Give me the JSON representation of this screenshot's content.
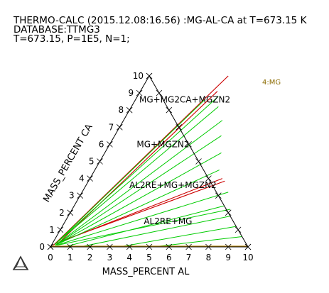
{
  "header": {
    "line1": "THERMO-CALC (2015.12.08:16.56) :MG-AL-CA at T=673.15 K",
    "line2": "DATABASE:TTMG3",
    "line3": "T=673.15, P=1E5, N=1;"
  },
  "chart_data": {
    "type": "ternary",
    "xlabel": "MASS_PERCENT AL",
    "ylabel": "MASS_PERCENT CA",
    "xlim": [
      0,
      10
    ],
    "ylim": [
      0,
      10
    ],
    "x_ticks": [
      "0",
      "1",
      "2",
      "3",
      "4",
      "5",
      "6",
      "7",
      "8",
      "9",
      "10"
    ],
    "y_ticks": [
      "0",
      "1",
      "2",
      "3",
      "4",
      "5",
      "6",
      "7",
      "8",
      "9",
      "10"
    ],
    "legend": "4:MG",
    "colors": {
      "boundary": "#cc0000",
      "tieline": "#00cc00",
      "edge_phase": "#b8860b",
      "legend_text": "#8b6b00",
      "axis": "#000000"
    },
    "region_labels": [
      {
        "text": "MG+MG2CA+MGZN2",
        "al": 2.5,
        "ca": 8.6
      },
      {
        "text": "MG+MGZN2",
        "al": 2.7,
        "ca": 6.0
      },
      {
        "text": "AL2RE+MG+MGZN2",
        "al": 4.4,
        "ca": 3.6
      },
      {
        "text": "AL2RE+MG",
        "al": 5.2,
        "ca": 1.5
      }
    ],
    "boundaries": [
      [
        [
          0.1,
          0.1
        ],
        [
          4.0,
          10.0
        ]
      ],
      [
        [
          0.25,
          0.1
        ],
        [
          3.9,
          9.1
        ]
      ],
      [
        [
          0.2,
          0.2
        ],
        [
          6.7,
          4.0
        ]
      ],
      [
        [
          0.3,
          0.3
        ],
        [
          6.9,
          3.85
        ]
      ]
    ],
    "tielines": [
      [
        [
          0.15,
          0.15
        ],
        [
          3.5,
          8.6
        ]
      ],
      [
        [
          0.15,
          0.15
        ],
        [
          4.1,
          8.8
        ]
      ],
      [
        [
          0.15,
          0.15
        ],
        [
          4.4,
          8.2
        ]
      ],
      [
        [
          0.2,
          0.1
        ],
        [
          5.0,
          7.4
        ]
      ],
      [
        [
          0.2,
          0.1
        ],
        [
          5.4,
          6.5
        ]
      ],
      [
        [
          0.2,
          0.1
        ],
        [
          5.9,
          5.5
        ]
      ],
      [
        [
          0.2,
          0.1
        ],
        [
          6.3,
          4.5
        ]
      ],
      [
        [
          0.25,
          0.1
        ],
        [
          7.4,
          3.2
        ]
      ],
      [
        [
          0.3,
          0.1
        ],
        [
          8.0,
          2.2
        ]
      ],
      [
        [
          0.7,
          0.0
        ],
        [
          7.6,
          2.4
        ]
      ],
      [
        [
          1.5,
          0.0
        ],
        [
          8.2,
          1.8
        ]
      ],
      [
        [
          3.5,
          0.0
        ],
        [
          8.8,
          1.2
        ]
      ],
      [
        [
          5.2,
          0.0
        ],
        [
          9.4,
          0.6
        ]
      ]
    ],
    "edge_phase": [
      [
        0.0,
        0.0
      ],
      [
        10.0,
        0.0
      ]
    ]
  }
}
